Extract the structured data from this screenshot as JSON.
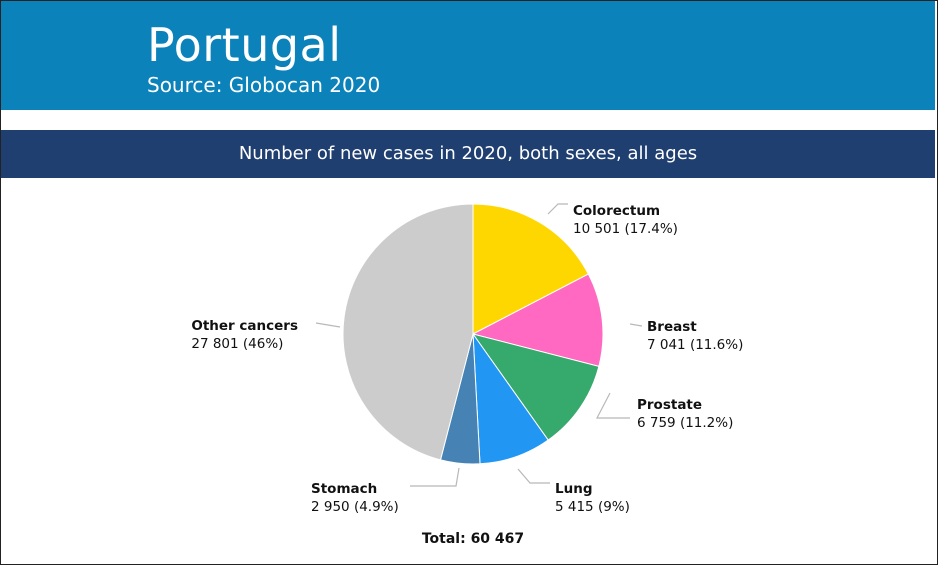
{
  "header": {
    "country": "Portugal",
    "source": "Source: Globocan 2020",
    "bg_color": "#0b82b9"
  },
  "subtitle": {
    "text": "Number of new cases in 2020, both sexes, all ages",
    "bg_color": "#1f3f70"
  },
  "chart_data": {
    "type": "pie",
    "title": "Number of new cases in 2020, both sexes, all ages",
    "total_label": "Total: 60 467",
    "total": 60467,
    "slices": [
      {
        "name": "Colorectum",
        "value": 10501,
        "label": "10 501 (17.4%)",
        "percent": 17.4,
        "color": "#ffd700"
      },
      {
        "name": "Breast",
        "value": 7041,
        "label": "7 041 (11.6%)",
        "percent": 11.6,
        "color": "#ff69c2"
      },
      {
        "name": "Prostate",
        "value": 6759,
        "label": "6 759 (11.2%)",
        "percent": 11.2,
        "color": "#36a96c"
      },
      {
        "name": "Lung",
        "value": 5415,
        "label": "5 415 (9%)",
        "percent": 9,
        "color": "#2196f3"
      },
      {
        "name": "Stomach",
        "value": 2950,
        "label": "2 950 (4.9%)",
        "percent": 4.9,
        "color": "#4682b4"
      },
      {
        "name": "Other cancers",
        "value": 27801,
        "label": "27 801 (46%)",
        "percent": 46,
        "color": "#cccccc"
      }
    ]
  }
}
